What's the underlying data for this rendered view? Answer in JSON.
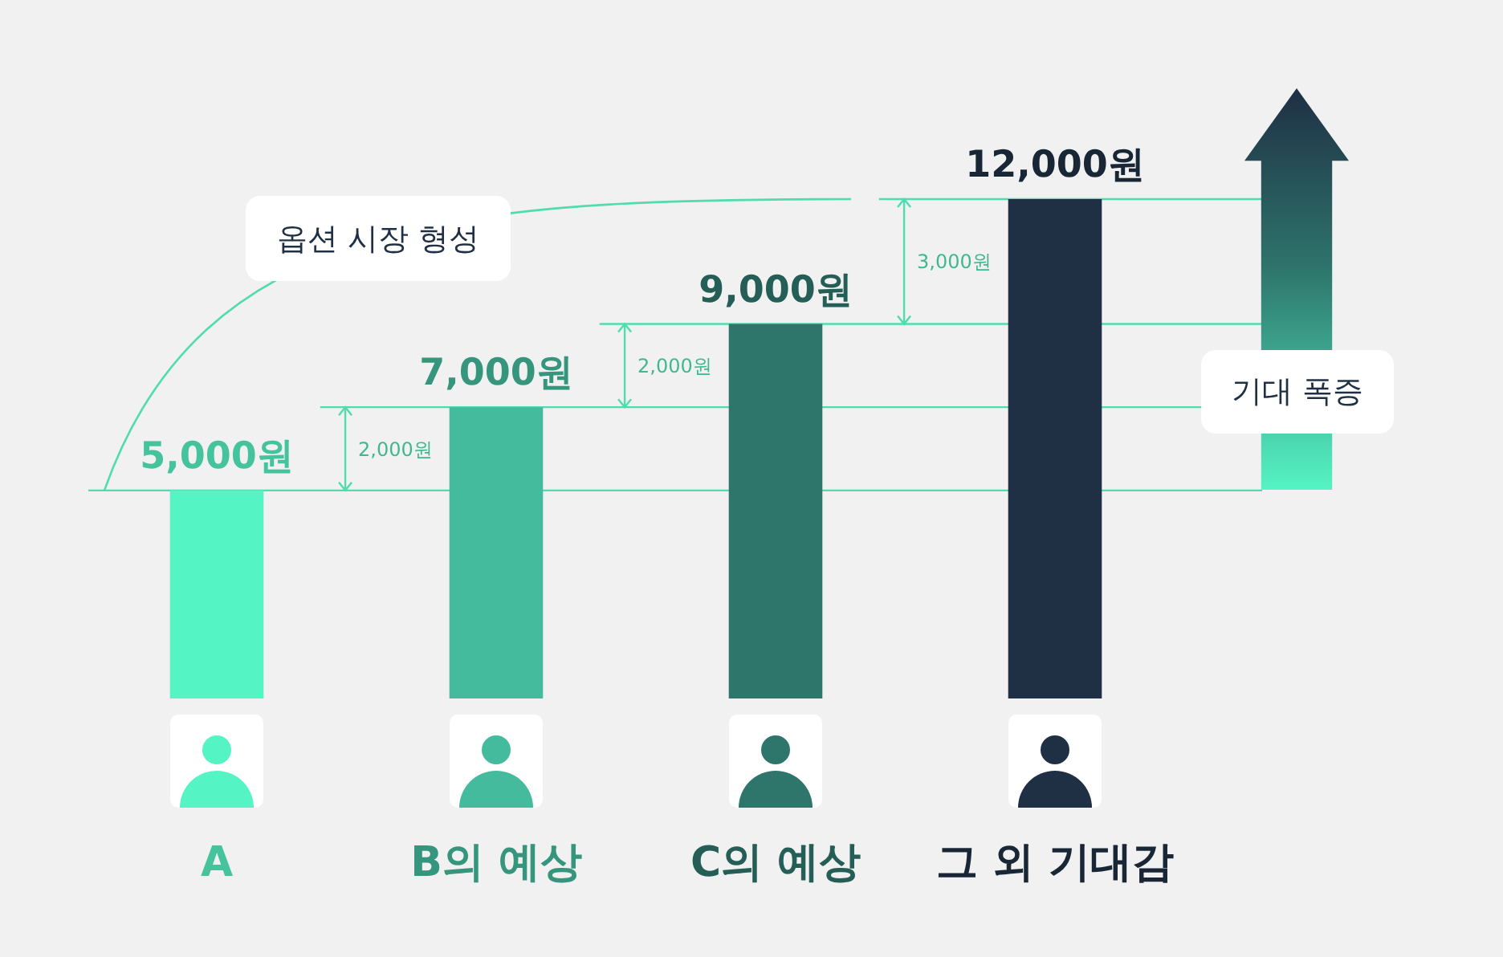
{
  "chart_data": {
    "type": "bar",
    "categories": [
      "A",
      "B의 예상",
      "C의 예상",
      "그 외 기대감"
    ],
    "values": [
      5000,
      7000,
      9000,
      12000
    ],
    "colors": [
      "#55f4c4",
      "#43bb9c",
      "#2e756c",
      "#1f2f44"
    ],
    "value_labels": [
      "5,000원",
      "7,000원",
      "9,000원",
      "12,000원"
    ],
    "tick_labels": "x",
    "grid": false,
    "ref_lines": [
      {
        "axis": "y",
        "value": 5000,
        "color": "#4fdcae"
      },
      {
        "axis": "y",
        "value": 7000,
        "color": "#4fdcae"
      },
      {
        "axis": "y",
        "value": 9000,
        "color": "#4fdcae"
      },
      {
        "axis": "y",
        "value": 12000,
        "color": "#4fdcae"
      }
    ],
    "annotations": [
      "옵션 시장 형성",
      "기대 폭증",
      "2,000원",
      "2,000원",
      "3,000원"
    ]
  }
}
